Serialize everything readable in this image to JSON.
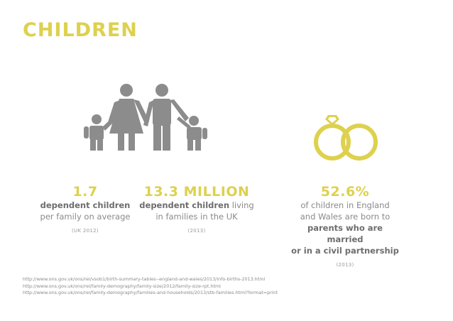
{
  "title": "CHILDREN",
  "icons": {
    "family": "family-icon",
    "rings": "wedding-rings-icon"
  },
  "colors": {
    "accent": "#ddd14e",
    "icon_gray": "#8c8c8c",
    "text": "#7a7a7a"
  },
  "stats": [
    {
      "value": "1.7",
      "bold": "dependent children",
      "rest": "",
      "line2": "per family on average",
      "note": "(UK 2012)"
    },
    {
      "value": "13.3 MILLION",
      "bold": "dependent children",
      "rest": " living",
      "line2": "in families in the UK",
      "note": "(2013)"
    },
    {
      "value": "52.6%",
      "line1": "of children in England",
      "line2": "and Wales are born to",
      "bold1": "parents who are married",
      "bold2": "or in a civil partnership",
      "note": "(2013)"
    }
  ],
  "sources": [
    "http://www.ons.gov.uk/ons/rel/vsob1/birth-summary-tables--england-and-wales/2013/info-births-2013.html",
    "http://www.ons.gov.uk/ons/rel/family-demography/family-size/2012/family-size-rpt.html",
    "http://www.ons.gov.uk/ons/rel/family-demography/families-and-households/2013/stb-families.html?format=print"
  ]
}
